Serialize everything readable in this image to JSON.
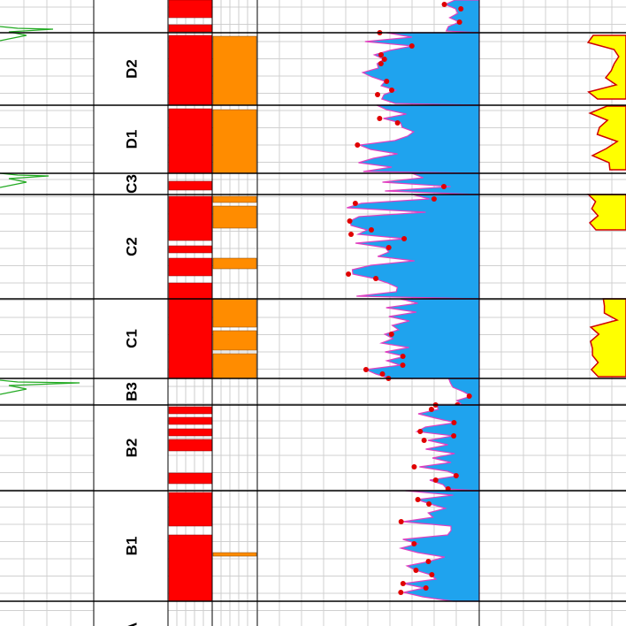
{
  "zones": [
    {
      "label": "D2"
    },
    {
      "label": "D1"
    },
    {
      "label": "C3"
    },
    {
      "label": "C2"
    },
    {
      "label": "C1"
    },
    {
      "label": "B3"
    },
    {
      "label": "B2"
    },
    {
      "label": "B1"
    },
    {
      "label": "A"
    }
  ]
}
